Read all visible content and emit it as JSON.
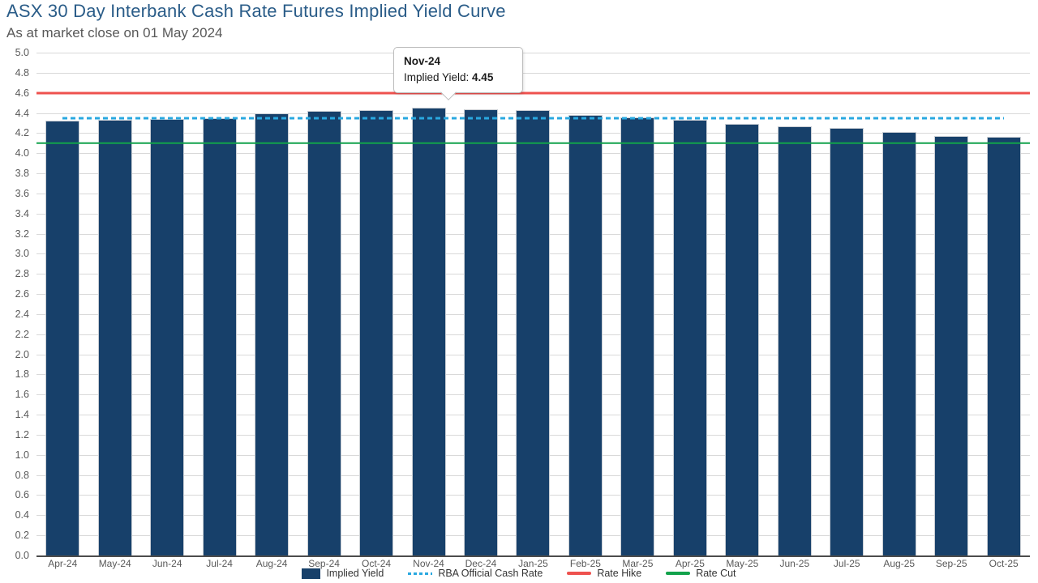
{
  "header": {
    "title": "ASX 30 Day Interbank Cash Rate Futures Implied Yield Curve",
    "subtitle": "As at market close on 01 May 2024"
  },
  "chart_data": {
    "type": "bar",
    "title": "ASX 30 Day Interbank Cash Rate Futures Implied Yield Curve",
    "subtitle": "As at market close on 01 May 2024",
    "categories": [
      "Apr-24",
      "May-24",
      "Jun-24",
      "Jul-24",
      "Aug-24",
      "Sep-24",
      "Oct-24",
      "Nov-24",
      "Dec-24",
      "Jan-25",
      "Feb-25",
      "Mar-25",
      "Apr-25",
      "May-25",
      "Jun-25",
      "Jul-25",
      "Aug-25",
      "Sep-25",
      "Oct-25"
    ],
    "series": [
      {
        "name": "Implied Yield",
        "type": "bar",
        "color": "#17406a",
        "values": [
          4.32,
          4.33,
          4.34,
          4.35,
          4.4,
          4.42,
          4.43,
          4.45,
          4.44,
          4.43,
          4.38,
          4.36,
          4.33,
          4.29,
          4.27,
          4.25,
          4.21,
          4.17,
          4.16
        ]
      },
      {
        "name": "RBA Official Cash Rate",
        "type": "line",
        "style": "dashed",
        "color": "#29a8e0",
        "value": 4.35
      },
      {
        "name": "Rate Hike",
        "type": "line",
        "style": "solid",
        "color": "#ee514e",
        "value": 4.6
      },
      {
        "name": "Rate Cut",
        "type": "line",
        "style": "solid",
        "color": "#12a24b",
        "value": 4.1
      }
    ],
    "xlabel": "",
    "ylabel": "",
    "ylim": [
      0,
      5
    ],
    "ytick_step": 0.2,
    "grid": true,
    "legend_position": "bottom"
  },
  "tooltip": {
    "title": "Nov-24",
    "series_label": "Implied Yield: ",
    "value": "4.45",
    "anchor_category": "Nov-24"
  }
}
